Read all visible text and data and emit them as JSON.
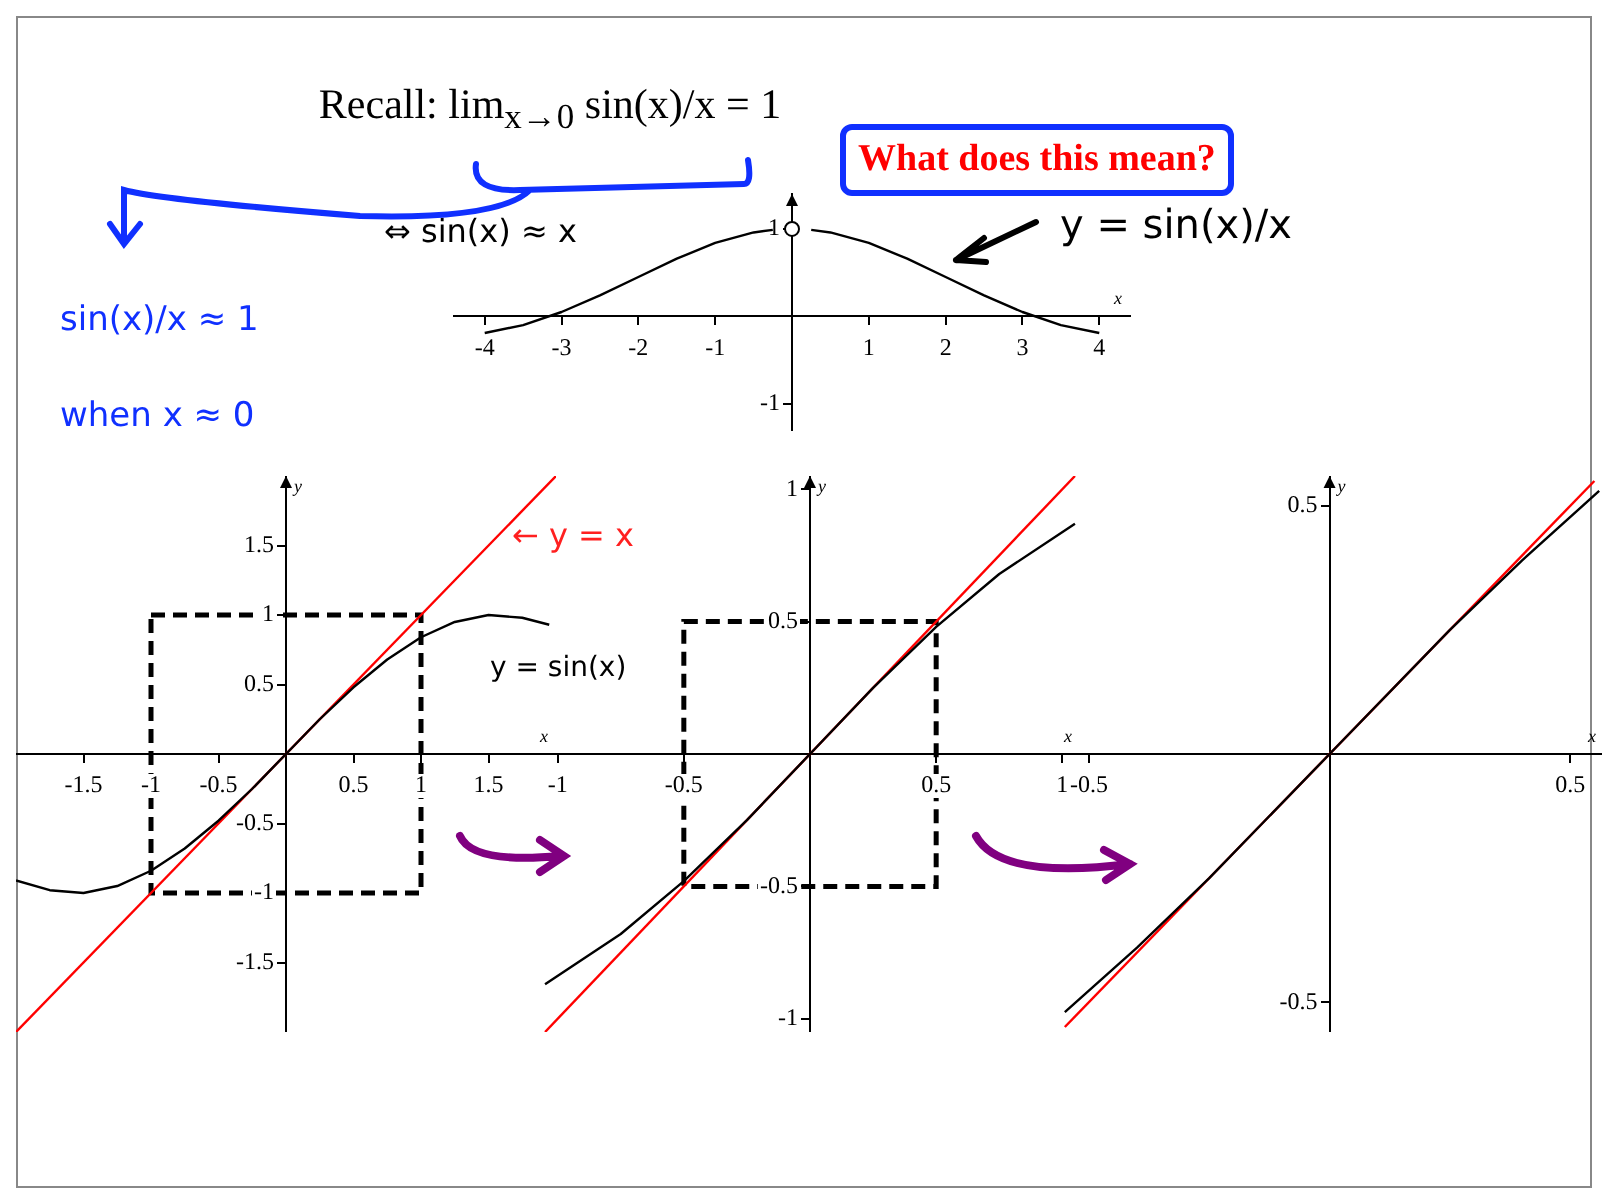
{
  "chart_data": [
    {
      "type": "line",
      "title": "Recall:  lim$_{x→0}$ sin(x)/x = 1",
      "xlabel": "x",
      "xlim": [
        -4.4,
        4.4
      ],
      "ylim": [
        -1.3,
        1.4
      ],
      "xticks": [
        -4,
        -3,
        -2,
        -1,
        1,
        2,
        3,
        4
      ],
      "yticks": [
        -1,
        1
      ],
      "grid": false,
      "legend": false,
      "marker": "none",
      "annotations": [
        "What does this mean?",
        "sin(x)/x ≈ 1",
        "when x ≈ 0",
        "⇔ sin(x) ≈ x",
        "y = sin(x)/x"
      ],
      "series": [
        {
          "color": "#000000",
          "x": [
            -4,
            -3.5,
            -3,
            -2.5,
            -2,
            -1.5,
            -1,
            -0.5,
            -0.25,
            0,
            0.25,
            0.5,
            1,
            1.5,
            2,
            2.5,
            3,
            3.5,
            4
          ],
          "values": [
            -0.19,
            -0.1,
            0.05,
            0.24,
            0.45,
            0.66,
            0.84,
            0.96,
            0.99,
            null,
            0.99,
            0.96,
            0.84,
            0.66,
            0.45,
            0.24,
            0.05,
            -0.1,
            -0.19
          ]
        },
        {
          "type": "scatter",
          "marker": "circle",
          "color": "#ffffff",
          "x": [
            0
          ],
          "values": [
            1
          ]
        }
      ]
    },
    {
      "type": "line",
      "xlim": [
        -2,
        2
      ],
      "ylim": [
        -2,
        2
      ],
      "xticks": [
        -1.5,
        -1,
        -0.5,
        0.5,
        1,
        1.5
      ],
      "yticks": [
        -1.5,
        -1,
        -0.5,
        0.5,
        1,
        1.5
      ],
      "xlabel": "x",
      "ylabel": "y",
      "grid": false,
      "legend": false,
      "marker": "none",
      "annotations": [
        "← y = x",
        "y = sin(x)"
      ],
      "series": [
        {
          "color": "#000000",
          "x": [
            -2,
            -1.75,
            -1.5,
            -1.25,
            -1,
            -0.75,
            -0.5,
            -0.25,
            0,
            0.25,
            0.5,
            0.75,
            1,
            1.25,
            1.5,
            1.75,
            1.95
          ],
          "values": [
            -0.91,
            -0.98,
            -1,
            -0.95,
            -0.84,
            -0.68,
            -0.48,
            -0.25,
            0,
            0.25,
            0.48,
            0.68,
            0.84,
            0.95,
            1,
            0.98,
            0.93
          ]
        },
        {
          "color": "#ff0000",
          "x": [
            -2,
            2
          ],
          "values": [
            -2,
            2
          ]
        }
      ]
    },
    {
      "type": "line",
      "xlim": [
        -1.07,
        1.07
      ],
      "ylim": [
        -1.05,
        1.05
      ],
      "xticks": [
        -1,
        -0.5,
        0.5,
        1
      ],
      "yticks": [
        -1,
        -0.5,
        0.5,
        1
      ],
      "xlabel": "x",
      "ylabel": "y",
      "grid": false,
      "legend": false,
      "marker": "none",
      "series": [
        {
          "color": "#000000",
          "x": [
            -1.05,
            -0.75,
            -0.5,
            -0.25,
            0,
            0.25,
            0.5,
            0.75,
            1.05
          ],
          "values": [
            -0.87,
            -0.68,
            -0.48,
            -0.25,
            0,
            0.25,
            0.48,
            0.68,
            0.87
          ]
        },
        {
          "color": "#ff0000",
          "x": [
            -1.05,
            1.05
          ],
          "values": [
            -1.05,
            1.05
          ]
        }
      ]
    },
    {
      "type": "line",
      "xlim": [
        -0.56,
        0.57
      ],
      "ylim": [
        -0.56,
        0.56
      ],
      "xticks": [
        -0.5,
        0.5
      ],
      "yticks": [
        -0.5,
        0.5
      ],
      "xlabel": "x",
      "ylabel": "y",
      "grid": false,
      "legend": false,
      "marker": "none",
      "series": [
        {
          "color": "#000000",
          "x": [
            -0.55,
            -0.4,
            -0.25,
            0,
            0.25,
            0.4,
            0.56
          ],
          "values": [
            -0.52,
            -0.39,
            -0.25,
            0,
            0.25,
            0.39,
            0.53
          ]
        },
        {
          "color": "#ff0000",
          "x": [
            -0.55,
            0.55
          ],
          "values": [
            -0.55,
            0.55
          ]
        }
      ]
    }
  ]
}
